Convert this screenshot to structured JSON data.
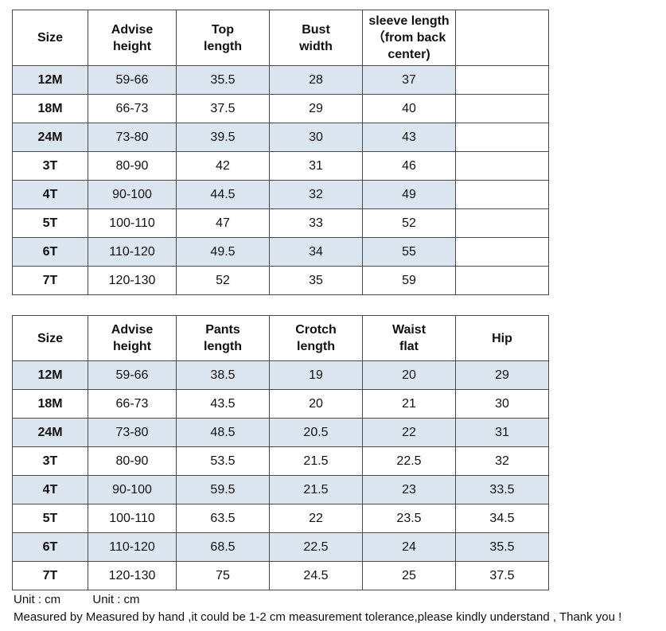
{
  "tops": {
    "headers": [
      "Size",
      "Advise\nheight",
      "Top\nlength",
      "Bust\nwidth",
      "sleeve length\n（from back\ncenter)",
      ""
    ],
    "rows": [
      [
        "12M",
        "59-66",
        "35.5",
        "28",
        "37",
        ""
      ],
      [
        "18M",
        "66-73",
        "37.5",
        "29",
        "40",
        ""
      ],
      [
        "24M",
        "73-80",
        "39.5",
        "30",
        "43",
        ""
      ],
      [
        "3T",
        "80-90",
        "42",
        "31",
        "46",
        ""
      ],
      [
        "4T",
        "90-100",
        "44.5",
        "32",
        "49",
        ""
      ],
      [
        "5T",
        "100-110",
        "47",
        "33",
        "52",
        ""
      ],
      [
        "6T",
        "110-120",
        "49.5",
        "34",
        "55",
        ""
      ],
      [
        "7T",
        "120-130",
        "52",
        "35",
        "59",
        ""
      ]
    ]
  },
  "pants": {
    "headers": [
      "Size",
      "Advise\nheight",
      "Pants\nlength",
      "Crotch\nlength",
      "Waist\nflat",
      "Hip"
    ],
    "rows": [
      [
        "12M",
        "59-66",
        "38.5",
        "19",
        "20",
        "29"
      ],
      [
        "18M",
        "66-73",
        "43.5",
        "20",
        "21",
        "30"
      ],
      [
        "24M",
        "73-80",
        "48.5",
        "20.5",
        "22",
        "31"
      ],
      [
        "3T",
        "80-90",
        "53.5",
        "21.5",
        "22.5",
        "32"
      ],
      [
        "4T",
        "90-100",
        "59.5",
        "21.5",
        "23",
        "33.5"
      ],
      [
        "5T",
        "100-110",
        "63.5",
        "22",
        "23.5",
        "34.5"
      ],
      [
        "6T",
        "110-120",
        "68.5",
        "22.5",
        "24",
        "35.5"
      ],
      [
        "7T",
        "120-130",
        "75",
        "24.5",
        "25",
        "37.5"
      ]
    ]
  },
  "footer": {
    "unit_1": "Unit : cm",
    "unit_2": "Unit : cm",
    "note": "Measured by Measured by hand ,it could be 1-2 cm measurement tolerance,please kindly understand , Thank you !"
  },
  "colors": {
    "shaded_row": "#dce6f1",
    "border": "#4a4a4a"
  }
}
